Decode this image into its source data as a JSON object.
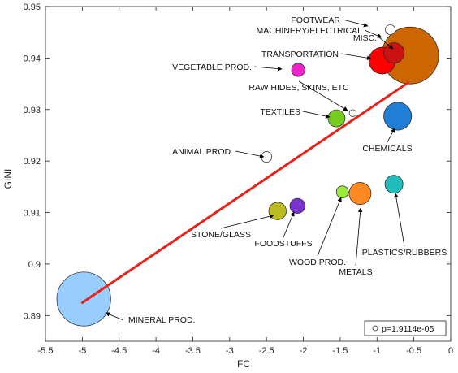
{
  "chart_data": {
    "type": "scatter",
    "title": "",
    "xlabel": "FC",
    "ylabel": "GINI",
    "xlim": [
      -5.5,
      0
    ],
    "ylim": [
      0.885,
      0.95
    ],
    "xticks": [
      "-5.5",
      "-5",
      "-4.5",
      "-4",
      "-3.5",
      "-3",
      "-2.5",
      "-2",
      "-1.5",
      "-1",
      "-0.5",
      "0"
    ],
    "yticks": [
      "0.89",
      "0.9",
      "0.91",
      "0.92",
      "0.93",
      "0.94",
      "0.95"
    ],
    "grid": false,
    "legend": {
      "placement": "bottom-right",
      "text": "p=1.9114e-05"
    },
    "fit_line": {
      "color": "#e8221b",
      "x": [
        -5.0,
        -0.58
      ],
      "y": [
        0.8925,
        0.9352
      ]
    },
    "points": [
      {
        "label": "FOOTWEAR",
        "x": -0.82,
        "y": 0.9455,
        "size": 0.3,
        "color": "#ffffff"
      },
      {
        "label": "MACHINERY/ELECTRICAL",
        "x": -0.55,
        "y": 0.9405,
        "size": 10.0,
        "color": "#cc6600"
      },
      {
        "label": "MISC.",
        "x": -0.77,
        "y": 0.941,
        "size": 1.3,
        "color": "#cc1111"
      },
      {
        "label": "TRANSPORTATION",
        "x": -0.93,
        "y": 0.9395,
        "size": 2.2,
        "color": "#ff0000"
      },
      {
        "label": "VEGETABLE PROD.",
        "x": -2.07,
        "y": 0.9377,
        "size": 0.55,
        "color": "#ee22cc"
      },
      {
        "label": "RAW HIDES, SKINS, ETC",
        "x": -1.33,
        "y": 0.9293,
        "size": 0.15,
        "color": "#ffffff"
      },
      {
        "label": "TEXTILES",
        "x": -1.55,
        "y": 0.9283,
        "size": 0.9,
        "color": "#77cc22"
      },
      {
        "label": "CHEMICALS",
        "x": -0.72,
        "y": 0.9287,
        "size": 2.4,
        "color": "#1f7fd6"
      },
      {
        "label": "ANIMAL PROD.",
        "x": -2.5,
        "y": 0.9208,
        "size": 0.35,
        "color": "#ffffff"
      },
      {
        "label": "STONE/GLASS",
        "x": -2.35,
        "y": 0.9103,
        "size": 0.95,
        "color": "#bbbb22"
      },
      {
        "label": "FOODSTUFFS",
        "x": -2.08,
        "y": 0.9113,
        "size": 0.7,
        "color": "#7733cc"
      },
      {
        "label": "WOOD PROD.",
        "x": -1.47,
        "y": 0.914,
        "size": 0.45,
        "color": "#99ee33"
      },
      {
        "label": "METALS",
        "x": -1.23,
        "y": 0.9137,
        "size": 1.5,
        "color": "#ff8822"
      },
      {
        "label": "PLASTICS/RUBBERS",
        "x": -0.77,
        "y": 0.9155,
        "size": 1.0,
        "color": "#22bbbb"
      },
      {
        "label": "MINERAL PROD.",
        "x": -4.98,
        "y": 0.8932,
        "size": 9.0,
        "color": "#99ccff"
      }
    ],
    "annotations": [
      {
        "label": "FOOTWEAR",
        "anchor": "end",
        "target": 0
      },
      {
        "label": "MACHINERY/ELECTRICAL",
        "anchor": "end",
        "target": 1
      },
      {
        "label": "MISC.",
        "anchor": "end",
        "target": 2
      },
      {
        "label": "TRANSPORTATION",
        "anchor": "end",
        "target": 3
      },
      {
        "label": "VEGETABLE PROD.",
        "anchor": "end",
        "target": 4
      },
      {
        "label": "RAW HIDES, SKINS, ETC",
        "anchor": "middle",
        "target": 5
      },
      {
        "label": "TEXTILES",
        "anchor": "end",
        "target": 6
      },
      {
        "label": "CHEMICALS",
        "anchor": "middle",
        "target": 7
      },
      {
        "label": "ANIMAL PROD.",
        "anchor": "end",
        "target": 8
      },
      {
        "label": "STONE/GLASS",
        "anchor": "middle",
        "target": 9
      },
      {
        "label": "FOODSTUFFS",
        "anchor": "middle",
        "target": 10
      },
      {
        "label": "WOOD PROD.",
        "anchor": "middle",
        "target": 11
      },
      {
        "label": "METALS",
        "anchor": "middle",
        "target": 12
      },
      {
        "label": "PLASTICS/RUBBERS",
        "anchor": "middle",
        "target": 13
      },
      {
        "label": "MINERAL PROD.",
        "anchor": "start",
        "target": 14
      }
    ]
  }
}
